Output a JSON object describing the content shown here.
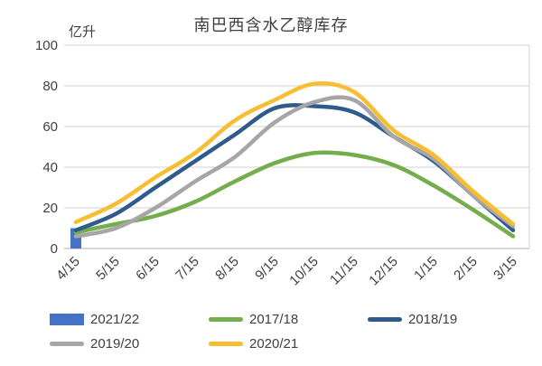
{
  "chart_data": {
    "type": "line",
    "title": "南巴西含水乙醇库存",
    "unit_label": "亿升",
    "categories": [
      "4/15",
      "5/15",
      "6/15",
      "7/15",
      "8/15",
      "9/15",
      "10/15",
      "11/15",
      "12/15",
      "1/15",
      "2/15",
      "3/15"
    ],
    "y_ticks": [
      0,
      20,
      40,
      60,
      80,
      100
    ],
    "ylim": [
      0,
      100
    ],
    "grid": "horizontal",
    "legend_position": "bottom",
    "series": [
      {
        "name": "2021/22",
        "type": "bar",
        "color": "#4472C4",
        "values": [
          10,
          null,
          null,
          null,
          null,
          null,
          null,
          null,
          null,
          null,
          null,
          null
        ]
      },
      {
        "name": "2017/18",
        "type": "line",
        "color": "#74AD4B",
        "values": [
          8,
          12,
          16,
          23,
          33,
          42,
          47,
          46,
          41,
          31,
          19,
          6
        ]
      },
      {
        "name": "2018/19",
        "type": "line",
        "color": "#2E5B8C",
        "values": [
          9,
          17,
          30,
          43,
          56,
          69,
          70,
          67,
          55,
          43,
          26,
          9
        ]
      },
      {
        "name": "2019/20",
        "type": "line",
        "color": "#A6A6A6",
        "values": [
          6,
          10,
          20,
          33,
          45,
          62,
          72,
          73,
          55,
          44,
          26,
          11
        ]
      },
      {
        "name": "2020/21",
        "type": "line",
        "color": "#F7BE33",
        "values": [
          13,
          22,
          35,
          47,
          63,
          73,
          81,
          77,
          58,
          46,
          28,
          12
        ]
      }
    ]
  },
  "colors": {
    "text": "#404040",
    "gridline": "#D9D9D9",
    "axisline": "#BFBFBF",
    "background": "#FFFFFF"
  }
}
